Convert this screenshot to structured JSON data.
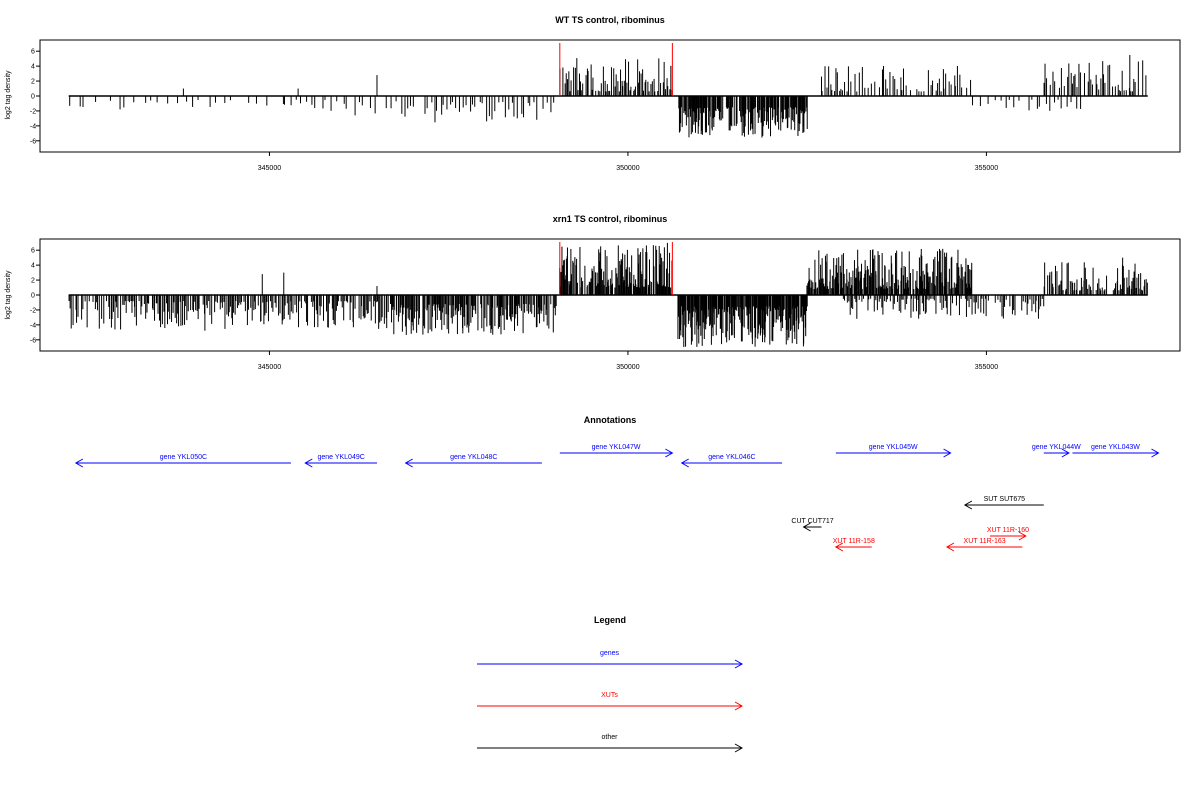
{
  "colors": {
    "gene": "#0000ff",
    "xut": "#ff0000",
    "other": "#000000",
    "marker": "#ff0000",
    "bar": "#000000"
  },
  "chart_data": [
    {
      "type": "bar",
      "title": "WT TS control, ribominus",
      "ylabel": "log2 tag density",
      "xlim": [
        341800,
        357700
      ],
      "ylim": [
        -7.5,
        7.5
      ],
      "xticks": [
        345000,
        350000,
        355000
      ],
      "yticks": [
        -6,
        -4,
        -2,
        0,
        2,
        4,
        6
      ],
      "data_range": [
        342200,
        357250
      ],
      "markers": [
        349050,
        350620
      ],
      "density": [
        {
          "x": [
            342200,
            345200
          ],
          "sign": -1,
          "every": 115,
          "amp": [
            0.5,
            2.2
          ]
        },
        {
          "x": [
            345200,
            346800
          ],
          "sign": -1,
          "every": 75,
          "amp": [
            0.5,
            2.6
          ]
        },
        {
          "x": [
            346800,
            349000
          ],
          "sign": -1,
          "every": 45,
          "amp": [
            0.8,
            3.6
          ]
        },
        {
          "x": [
            349050,
            350620
          ],
          "sign": 1,
          "every": 18,
          "amp": [
            0.6,
            5.2
          ]
        },
        {
          "x": [
            350700,
            352500
          ],
          "sign": -1,
          "every": 9,
          "amp": [
            1.5,
            5.6
          ]
        },
        {
          "x": [
            352700,
            354800
          ],
          "sign": 1,
          "every": 25,
          "amp": [
            0.6,
            4.2
          ]
        },
        {
          "x": [
            354800,
            356300
          ],
          "sign": -1,
          "every": 60,
          "amp": [
            0.5,
            2.3
          ]
        },
        {
          "x": [
            355800,
            357250
          ],
          "sign": 1,
          "every": 22,
          "amp": [
            0.6,
            5.0
          ]
        }
      ],
      "spikes": [
        {
          "x": 343800,
          "y": 1.0
        },
        {
          "x": 345400,
          "y": 1.0
        },
        {
          "x": 346500,
          "y": 2.8
        },
        {
          "x": 352700,
          "y": 2.6
        },
        {
          "x": 354400,
          "y": 3.6
        },
        {
          "x": 357000,
          "y": 5.5
        }
      ]
    },
    {
      "type": "bar",
      "title": "xrn1 TS control, ribominus",
      "ylabel": "log2 tag density",
      "xlim": [
        341800,
        357700
      ],
      "ylim": [
        -7.5,
        7.5
      ],
      "xticks": [
        345000,
        350000,
        355000
      ],
      "yticks": [
        -6,
        -4,
        -2,
        0,
        2,
        4,
        6
      ],
      "data_range": [
        342200,
        357250
      ],
      "markers": [
        349050,
        350620
      ],
      "density": [
        {
          "x": [
            342200,
            345200
          ],
          "sign": -1,
          "every": 16,
          "amp": [
            0.8,
            4.8
          ]
        },
        {
          "x": [
            345200,
            346700
          ],
          "sign": -1,
          "every": 16,
          "amp": [
            0.8,
            4.6
          ]
        },
        {
          "x": [
            346700,
            349000
          ],
          "sign": -1,
          "every": 11,
          "amp": [
            1.2,
            5.5
          ]
        },
        {
          "x": [
            349050,
            350620
          ],
          "sign": 1,
          "every": 9,
          "amp": [
            1.0,
            7.0
          ]
        },
        {
          "x": [
            350700,
            352500
          ],
          "sign": -1,
          "every": 6,
          "amp": [
            1.5,
            7.0
          ]
        },
        {
          "x": [
            352500,
            354800
          ],
          "sign": 1,
          "every": 9,
          "amp": [
            0.8,
            6.5
          ]
        },
        {
          "x": [
            353000,
            355800
          ],
          "sign": -1,
          "every": 20,
          "amp": [
            0.5,
            3.2
          ]
        },
        {
          "x": [
            355800,
            357250
          ],
          "sign": 1,
          "every": 15,
          "amp": [
            0.6,
            4.5
          ]
        }
      ],
      "spikes": [
        {
          "x": 344900,
          "y": 2.8
        },
        {
          "x": 345200,
          "y": 3.0
        },
        {
          "x": 346500,
          "y": 1.2
        },
        {
          "x": 356900,
          "y": 5.0
        }
      ]
    }
  ],
  "annotations": {
    "title": "Annotations",
    "items": [
      {
        "label": "gene YKL050C",
        "x1": 342300,
        "x2": 345300,
        "row": 1,
        "dir": "left",
        "kind": "gene"
      },
      {
        "label": "gene YKL049C",
        "x1": 345500,
        "x2": 346500,
        "row": 1,
        "dir": "left",
        "kind": "gene"
      },
      {
        "label": "gene YKL048C",
        "x1": 346900,
        "x2": 348800,
        "row": 1,
        "dir": "left",
        "kind": "gene"
      },
      {
        "label": "gene YKL047W",
        "x1": 349050,
        "x2": 350620,
        "row": 0,
        "dir": "right",
        "kind": "gene"
      },
      {
        "label": "gene YKL046C",
        "x1": 350750,
        "x2": 352150,
        "row": 1,
        "dir": "left",
        "kind": "gene"
      },
      {
        "label": "gene YKL045W",
        "x1": 352900,
        "x2": 354500,
        "row": 0,
        "dir": "right",
        "kind": "gene"
      },
      {
        "label": "gene YKL044W",
        "x1": 355800,
        "x2": 356150,
        "row": 0,
        "dir": "right",
        "kind": "gene"
      },
      {
        "label": "gene YKL043W",
        "x1": 356200,
        "x2": 357400,
        "row": 0,
        "dir": "right",
        "kind": "gene"
      },
      {
        "label": "SUT SUT675",
        "x1": 354700,
        "x2": 355800,
        "row": 2,
        "dir": "left",
        "kind": "other"
      },
      {
        "label": "CUT CUT717",
        "x1": 352450,
        "x2": 352700,
        "row": 3,
        "dir": "left",
        "kind": "other"
      },
      {
        "label": "XUT 11R-160",
        "x1": 355050,
        "x2": 355550,
        "row": 4,
        "dir": "right",
        "kind": "xut"
      },
      {
        "label": "XUT 11R-158",
        "x1": 352900,
        "x2": 353400,
        "row": 5,
        "dir": "left",
        "kind": "xut"
      },
      {
        "label": "XUT 11R-163",
        "x1": 354450,
        "x2": 355500,
        "row": 5,
        "dir": "left",
        "kind": "xut"
      }
    ]
  },
  "legend": {
    "title": "Legend",
    "items": [
      {
        "label": "genes",
        "kind": "gene"
      },
      {
        "label": "XUTs",
        "kind": "xut"
      },
      {
        "label": "other",
        "kind": "other"
      }
    ]
  }
}
